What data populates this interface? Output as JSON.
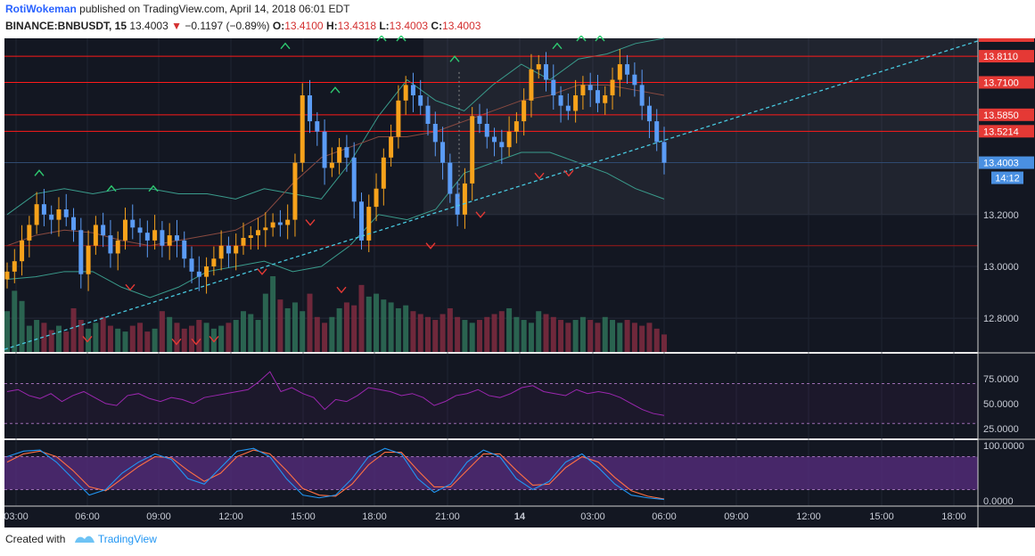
{
  "header": {
    "author": "RotiWokeman",
    "published_text": "published on TradingView.com, April 14, 2018 06:01 EDT",
    "symbol": "BINANCE:BNBUSDT, 15",
    "last": "13.4003",
    "change": "−0.1197 (−0.89%)",
    "o_label": "O:",
    "o_value": "13.4100",
    "h_label": "H:",
    "h_value": "13.4318",
    "l_label": "L:",
    "l_value": "13.4003",
    "c_label": "C:",
    "c_value": "13.4003"
  },
  "footer": {
    "created_with": "Created with",
    "brand": "TradingView"
  },
  "colors": {
    "background": "#131722",
    "up": "#f7a21b",
    "down": "#5b9cf6",
    "resistance": "#ff1a1a",
    "trendline": "#48c9e0",
    "bollinger": "#3a9c8c",
    "volume_up": "#2e6b55",
    "volume_down": "#7a2a3e",
    "rsi": "#9c27b0",
    "stoch_k": "#2196f3",
    "stoch_d": "#ff7043",
    "arrow_up": "#2ecc71",
    "arrow_down": "#e53935",
    "price_badge": "#4a90e2"
  },
  "chart_data": {
    "type": "candlestick",
    "ylim": [
      12.67,
      13.88
    ],
    "y_ticks": [
      12.8,
      13.0,
      13.2
    ],
    "y_tick_labels": [
      "12.8000",
      "13.0000",
      "13.2000"
    ],
    "x_tick_labels": [
      "03:00",
      "06:00",
      "09:00",
      "12:00",
      "15:00",
      "18:00",
      "21:00",
      "14",
      "03:00",
      "06:00",
      "09:00",
      "12:00",
      "15:00",
      "18:00"
    ],
    "price_levels": [
      13.811,
      13.71,
      13.585,
      13.5214
    ],
    "price_level_labels": [
      "13.8110",
      "13.7100",
      "13.5850",
      "13.5214"
    ],
    "current_price": 13.4003,
    "current_price_label": "13.4003",
    "countdown": "14:12",
    "closes": [
      12.98,
      13.02,
      13.1,
      13.16,
      13.24,
      13.2,
      13.18,
      13.22,
      13.19,
      13.14,
      12.97,
      13.08,
      13.16,
      13.12,
      13.05,
      13.1,
      13.18,
      13.15,
      13.13,
      13.1,
      13.14,
      13.08,
      13.12,
      13.1,
      13.03,
      12.98,
      12.96,
      13.0,
      13.03,
      13.08,
      13.05,
      13.08,
      13.11,
      13.12,
      13.14,
      13.15,
      13.17,
      13.16,
      13.18,
      13.4,
      13.66,
      13.56,
      13.52,
      13.38,
      13.4,
      13.46,
      13.42,
      13.25,
      13.1,
      13.23,
      13.3,
      13.42,
      13.5,
      13.64,
      13.7,
      13.66,
      13.62,
      13.55,
      13.48,
      13.4,
      13.28,
      13.2,
      13.32,
      13.58,
      13.55,
      13.5,
      13.48,
      13.46,
      13.52,
      13.56,
      13.64,
      13.76,
      13.78,
      13.72,
      13.66,
      13.62,
      13.6,
      13.66,
      13.7,
      13.68,
      13.63,
      13.66,
      13.72,
      13.78,
      13.74,
      13.7,
      13.62,
      13.56,
      13.48,
      13.4
    ],
    "bollinger_upper": [
      13.2,
      13.28,
      13.3,
      13.28,
      13.3,
      13.3,
      13.28,
      13.28,
      13.26,
      13.3,
      13.28,
      13.26,
      13.4,
      13.58,
      13.72,
      13.64,
      13.6,
      13.7,
      13.78,
      13.72,
      13.8,
      13.82,
      13.86,
      13.88
    ],
    "bollinger_middle": [
      13.08,
      13.12,
      13.14,
      13.13,
      13.1,
      13.08,
      13.1,
      13.12,
      13.14,
      13.2,
      13.32,
      13.42,
      13.46,
      13.5,
      13.5,
      13.52,
      13.56,
      13.6,
      13.64,
      13.66,
      13.7,
      13.7,
      13.68,
      13.66
    ],
    "bollinger_lower": [
      12.95,
      12.96,
      12.98,
      12.98,
      12.92,
      12.88,
      12.92,
      12.98,
      13.0,
      13.02,
      12.98,
      13.0,
      13.08,
      13.2,
      13.18,
      13.22,
      13.36,
      13.4,
      13.44,
      13.44,
      13.4,
      13.36,
      13.3,
      13.26
    ],
    "volume": [
      28,
      42,
      35,
      18,
      22,
      20,
      15,
      18,
      14,
      30,
      22,
      16,
      20,
      24,
      18,
      16,
      14,
      18,
      20,
      14,
      16,
      28,
      24,
      20,
      16,
      18,
      22,
      20,
      16,
      18,
      20,
      22,
      28,
      26,
      22,
      40,
      52,
      36,
      30,
      34,
      28,
      40,
      24,
      20,
      24,
      30,
      34,
      32,
      46,
      38,
      40,
      36,
      34,
      30,
      32,
      28,
      26,
      24,
      22,
      26,
      30,
      24,
      22,
      20,
      22,
      24,
      26,
      28,
      30,
      24,
      22,
      20,
      28,
      26,
      24,
      22,
      20,
      22,
      24,
      22,
      20,
      24,
      22,
      20,
      22,
      20,
      18,
      20,
      16,
      12
    ],
    "rsi": {
      "ylim": [
        15,
        100
      ],
      "y_ticks": [
        75,
        50,
        25
      ],
      "y_tick_labels": [
        "75.0000",
        "50.0000",
        "25.0000"
      ],
      "values": [
        62,
        64,
        58,
        55,
        60,
        52,
        58,
        62,
        56,
        50,
        48,
        58,
        60,
        55,
        52,
        56,
        54,
        50,
        56,
        58,
        60,
        62,
        64,
        72,
        82,
        62,
        66,
        60,
        56,
        44,
        54,
        52,
        58,
        66,
        64,
        62,
        58,
        60,
        56,
        48,
        52,
        58,
        60,
        64,
        58,
        56,
        60,
        66,
        68,
        62,
        60,
        58,
        64,
        60,
        62,
        60,
        56,
        50,
        44,
        40,
        38
      ]
    },
    "stochastic": {
      "ylim": [
        -10,
        110
      ],
      "y_ticks": [
        100,
        0
      ],
      "y_tick_labels": [
        "100.0000",
        "0.0000"
      ],
      "k": [
        80,
        90,
        92,
        70,
        40,
        10,
        20,
        50,
        70,
        85,
        75,
        40,
        30,
        60,
        90,
        95,
        80,
        40,
        10,
        5,
        10,
        40,
        80,
        95,
        85,
        40,
        15,
        30,
        70,
        92,
        80,
        40,
        20,
        35,
        70,
        85,
        60,
        30,
        10,
        5,
        2
      ],
      "d": [
        70,
        85,
        90,
        80,
        55,
        25,
        18,
        40,
        62,
        80,
        78,
        55,
        35,
        50,
        80,
        92,
        85,
        55,
        22,
        10,
        8,
        30,
        65,
        88,
        88,
        55,
        25,
        25,
        55,
        85,
        85,
        55,
        28,
        30,
        60,
        80,
        70,
        42,
        18,
        8,
        3
      ]
    }
  }
}
